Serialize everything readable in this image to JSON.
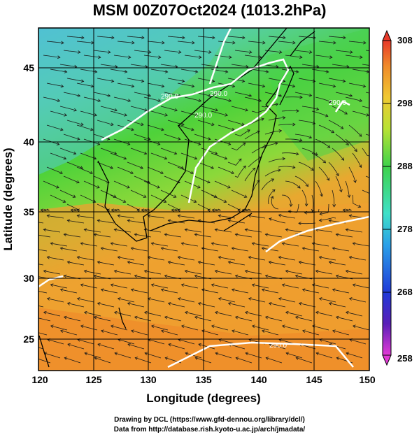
{
  "title": "MSM 00Z07Oct2024 (1013.2hPa)",
  "xlabel": "Longitude (degrees)",
  "ylabel": "Latitude  (degrees)",
  "x_ticks": [
    "120",
    "125",
    "130",
    "135",
    "140",
    "145",
    "150"
  ],
  "y_ticks": [
    "25",
    "30",
    "35",
    "40",
    "45"
  ],
  "colorbar_ticks": [
    "308",
    "298",
    "288",
    "278",
    "268",
    "258"
  ],
  "contour_labels": [
    "290.0",
    "290.0",
    "290.0",
    "290.0",
    "290.0"
  ],
  "credit_line1": "Drawing by DCL (https://www.gfd-dennou.org/library/dcl/)",
  "credit_line2": "Data from http://database.rish.kyoto-u.ac.jp/arch/jmadata/",
  "map_data": {
    "type": "map",
    "variable": "temperature (K) with streamlines",
    "xlim": [
      120,
      150
    ],
    "ylim": [
      22.4,
      47.6
    ],
    "colorbar_range": [
      258,
      308
    ],
    "contour_level": 290.0,
    "grid": true
  },
  "colors": {
    "cold": "#3fb7d8",
    "cool": "#4fd08a",
    "mild": "#5cd23c",
    "warm": "#a8d33a",
    "hot": "#f0a22a",
    "contour": "#ffffff",
    "coast": "#000000"
  }
}
